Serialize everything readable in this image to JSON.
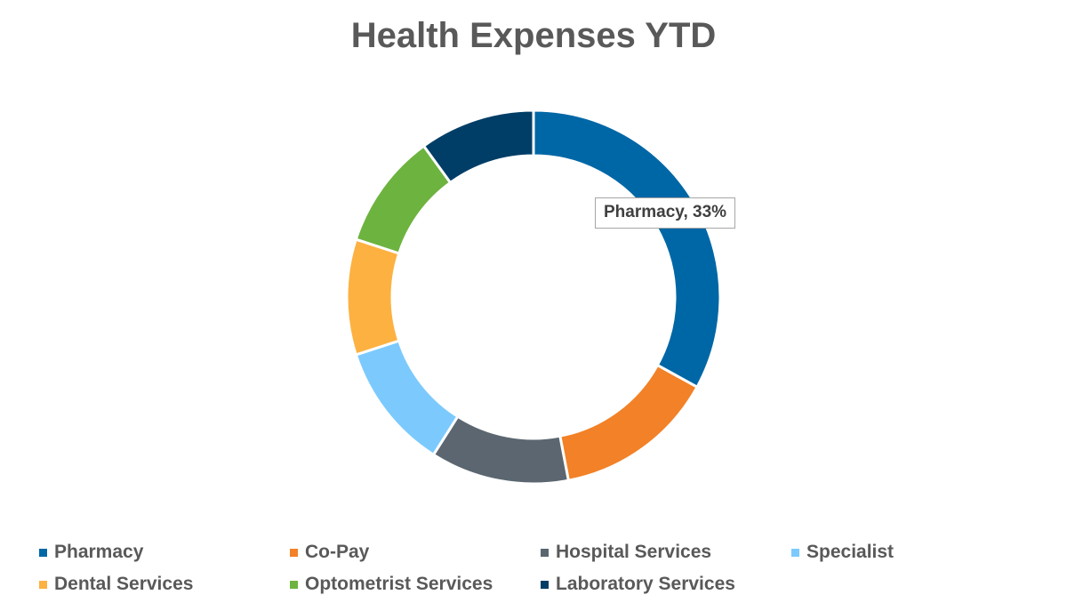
{
  "chart_data": {
    "type": "pie",
    "title": "Health Expenses YTD",
    "categories": [
      "Pharmacy",
      "Co-Pay",
      "Hospital Services",
      "Specialist",
      "Dental Services",
      "Optometrist Services",
      "Laboratory Services"
    ],
    "values": [
      33,
      14,
      12,
      11,
      10,
      10,
      10
    ],
    "colors": [
      "#0067a6",
      "#f28127",
      "#5b6670",
      "#7ccafd",
      "#fdb141",
      "#6db33f",
      "#013e67"
    ],
    "data_labels": [
      {
        "category": "Pharmacy",
        "label": "Pharmacy",
        "value_text": "33%"
      }
    ],
    "legend_position": "bottom",
    "hole": "donut"
  }
}
